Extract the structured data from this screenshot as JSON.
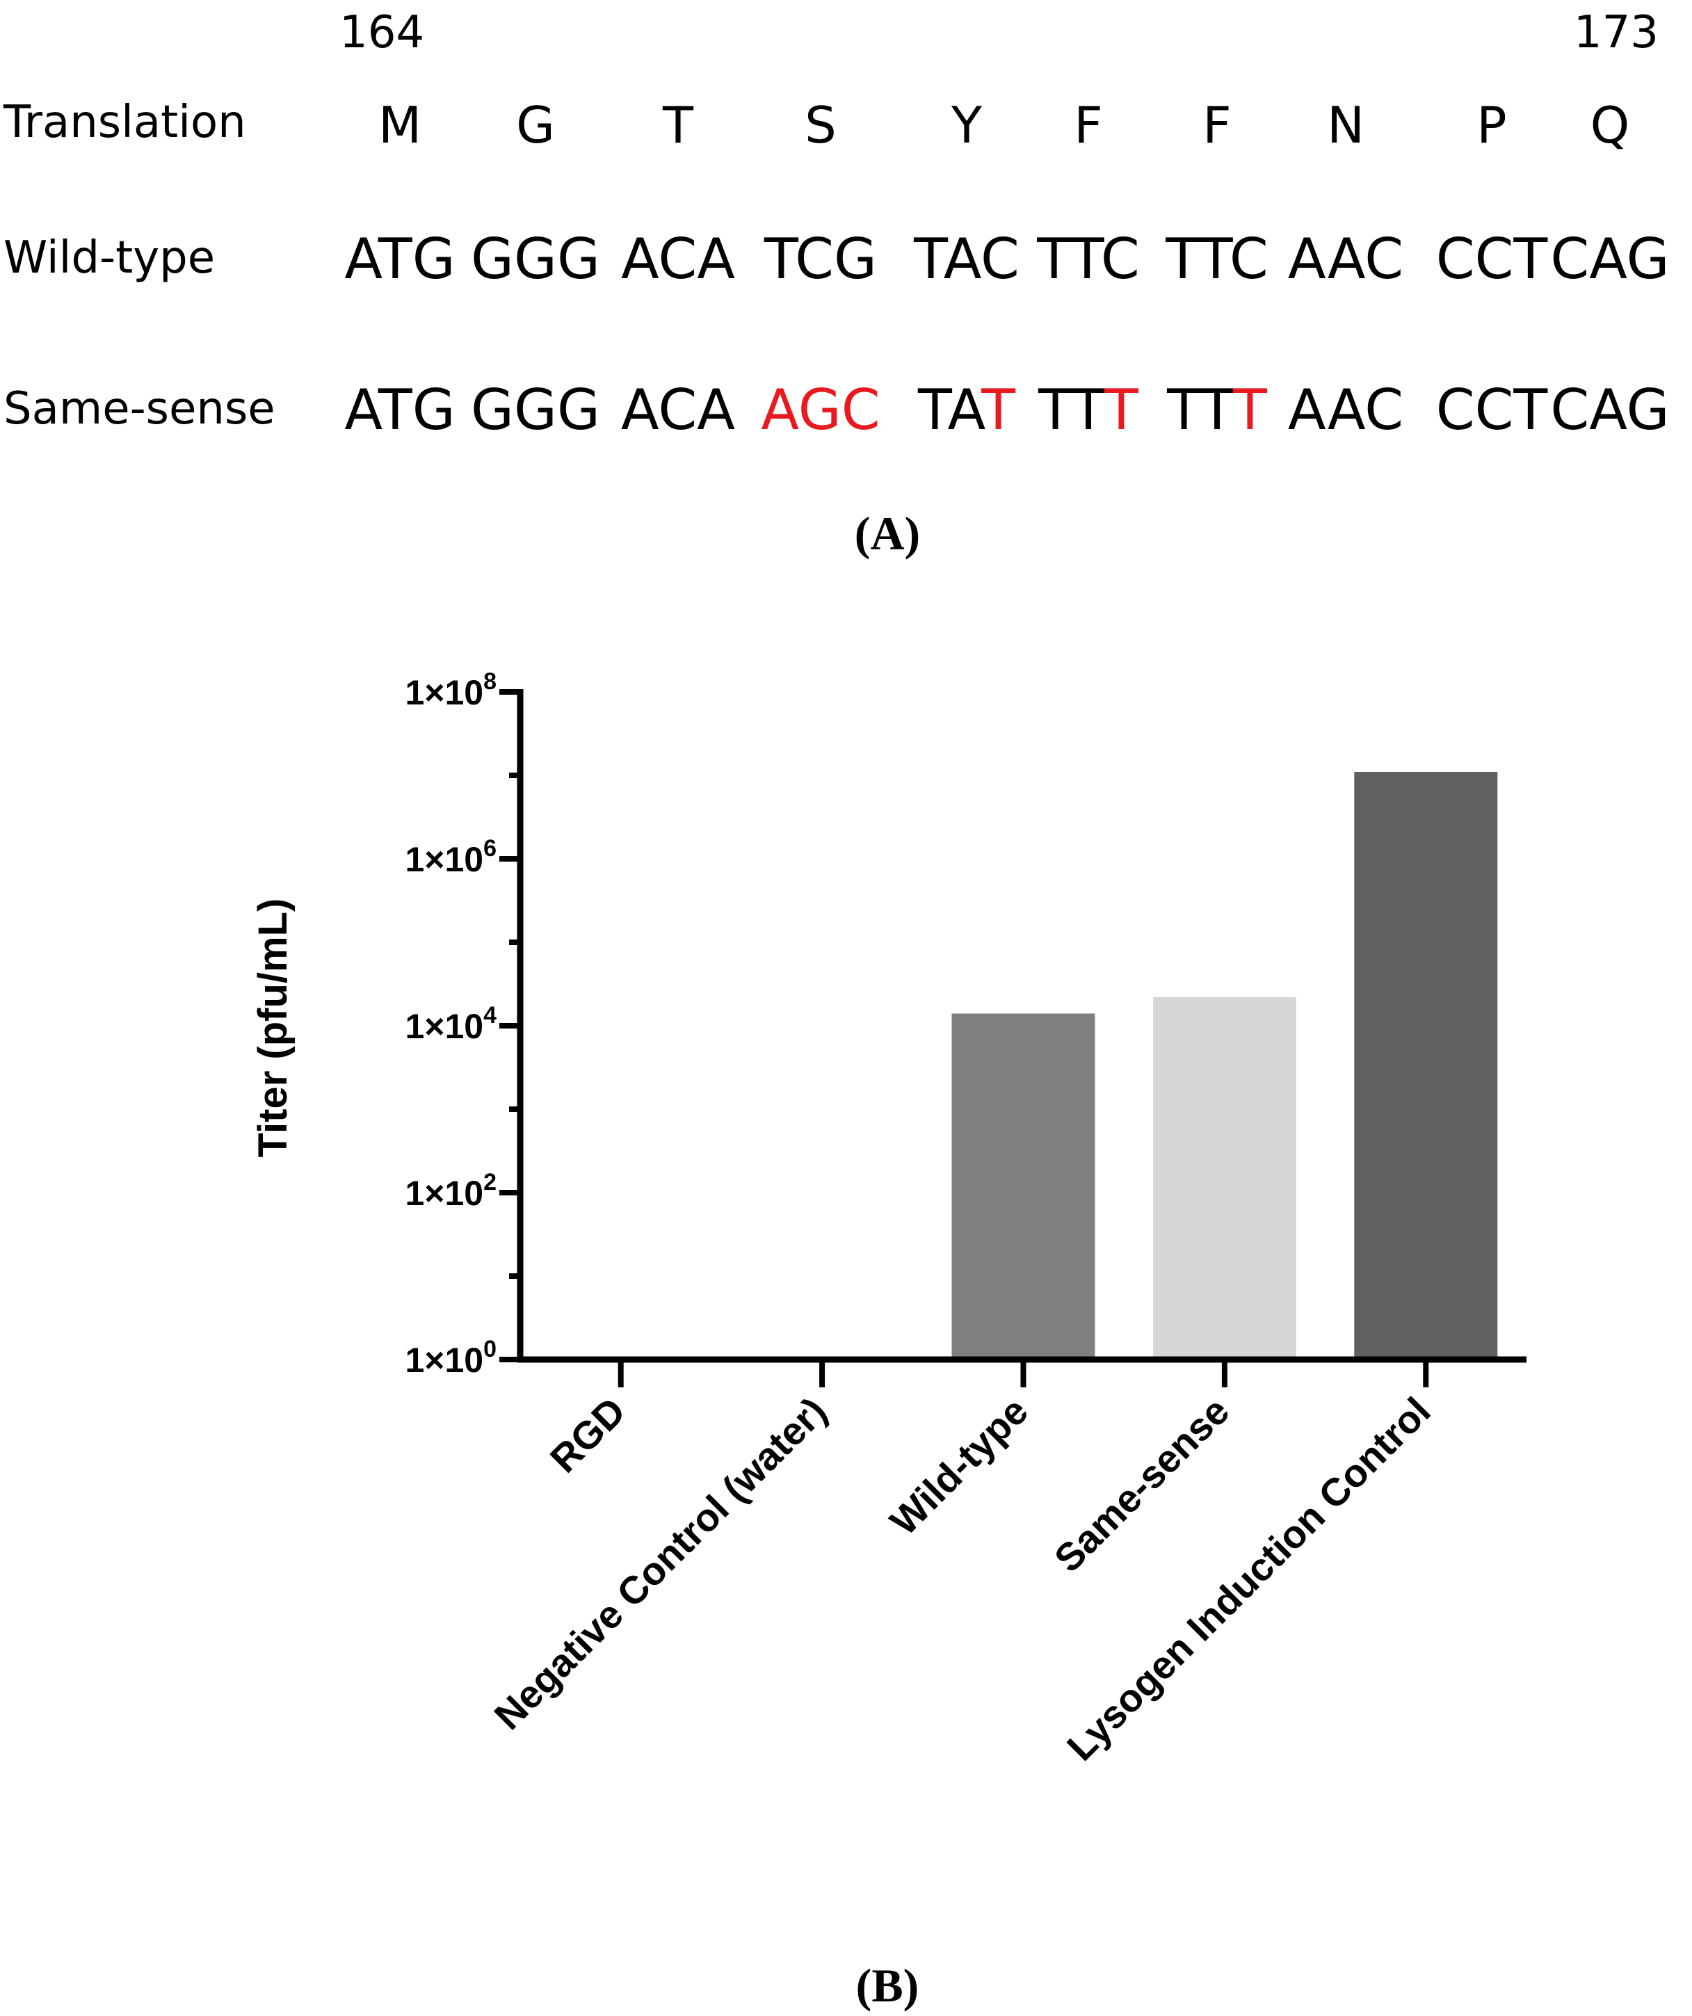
{
  "panel_a": {
    "position_start": "164",
    "position_end": "173",
    "rows": [
      {
        "label": "Translation",
        "tokens": [
          "M",
          "G",
          "T",
          "S",
          "Y",
          "F",
          "F",
          "N",
          "P",
          "Q"
        ]
      },
      {
        "label": "Wild-type",
        "tokens": [
          "ATG",
          "GGG",
          "ACA",
          "TCG",
          "TAC",
          "TTC",
          "TTC",
          "AAC",
          "CCT",
          "CAG"
        ]
      },
      {
        "label": "Same-sense",
        "tokens": [
          "ATG",
          "GGG",
          "ACA",
          "AGC",
          "TAT",
          "TTT",
          "TTT",
          "AAC",
          "CCT",
          "CAG"
        ],
        "mutated": [
          [],
          [],
          [],
          [
            0,
            1,
            2
          ],
          [
            2
          ],
          [
            2
          ],
          [
            2
          ],
          [],
          [],
          []
        ]
      }
    ],
    "mutation_color": "#e8191f",
    "caption": "(A)"
  },
  "panel_b_caption": "(B)",
  "chart_data": {
    "type": "bar",
    "categories": [
      "RGD",
      "Negative Control (water)",
      "Wild-type",
      "Same-sense",
      "Lysogen Induction Control"
    ],
    "values": [
      1,
      1,
      14000,
      22000,
      11000000
    ],
    "bar_colors": [
      "#7f7f7f",
      "#7f7f7f",
      "#7f7f7f",
      "#d6d6d6",
      "#606060"
    ],
    "ylabel": "Titer (pfu/mL)",
    "yscale": "log",
    "ylim": [
      1,
      100000000
    ],
    "yticks": [
      {
        "value": 1,
        "base": "1×10",
        "exp": "0"
      },
      {
        "value": 100,
        "base": "1×10",
        "exp": "2"
      },
      {
        "value": 10000,
        "base": "1×10",
        "exp": "4"
      },
      {
        "value": 1000000,
        "base": "1×10",
        "exp": "6"
      },
      {
        "value": 100000000,
        "base": "1×10",
        "exp": "8"
      }
    ],
    "grid": false,
    "legend": "none"
  }
}
